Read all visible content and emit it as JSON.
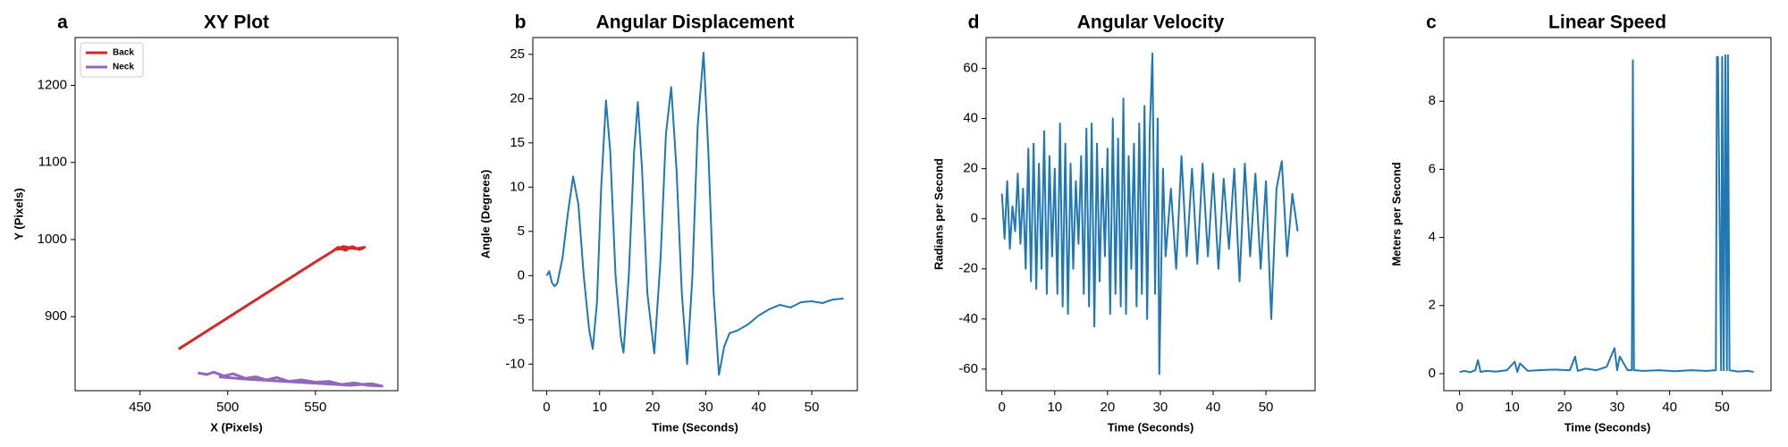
{
  "chart_data": [
    {
      "type": "line",
      "panel_label": "a",
      "title": "XY Plot",
      "xlabel": "X (Pixels)",
      "ylabel": "Y (Pixels)",
      "xlim": [
        413,
        597
      ],
      "ylim": [
        804,
        1262
      ],
      "xticks": [
        450,
        500,
        550
      ],
      "yticks": [
        900,
        1000,
        1100,
        1200
      ],
      "legend": "upper left",
      "series": [
        {
          "name": "Back",
          "color": "#d62728",
          "x": [
            472,
            490,
            510,
            530,
            550,
            560,
            563,
            567,
            571,
            575,
            578,
            573,
            566,
            561,
            570,
            577
          ],
          "values": [
            858,
            884,
            913,
            942,
            971,
            985,
            990,
            986,
            991,
            987,
            990,
            988,
            991,
            987,
            989,
            988
          ]
        },
        {
          "name": "Neck",
          "color": "#9467bd",
          "x": [
            483,
            488,
            492,
            498,
            503,
            510,
            516,
            522,
            528,
            535,
            542,
            550,
            558,
            565,
            572,
            580,
            588,
            582,
            570,
            555,
            540,
            525,
            510,
            495
          ],
          "values": [
            827,
            825,
            828,
            823,
            826,
            820,
            822,
            818,
            821,
            816,
            818,
            815,
            816,
            812,
            814,
            811,
            810,
            813,
            811,
            813,
            815,
            817,
            819,
            822
          ]
        }
      ]
    },
    {
      "type": "line",
      "panel_label": "b",
      "title": "Angular Displacement",
      "xlabel": "Time (Seconds)",
      "ylabel": "Angle (Degrees)",
      "xlim": [
        -2.6,
        58.6
      ],
      "ylim": [
        -13.0,
        26.9
      ],
      "xticks": [
        0,
        10,
        20,
        30,
        40,
        50
      ],
      "yticks": [
        -10,
        -5,
        0,
        5,
        10,
        15,
        20,
        25
      ],
      "color": "#1f77b4",
      "x": [
        0,
        0.5,
        1,
        1.5,
        2,
        3,
        4,
        5,
        6,
        7,
        8,
        8.7,
        9.5,
        10.3,
        11.2,
        12,
        13,
        14,
        14.5,
        15.5,
        16.5,
        17.2,
        18,
        19,
        20.3,
        21.5,
        22.5,
        23.5,
        24.5,
        25.5,
        26.5,
        27.5,
        28.5,
        29.6,
        30.5,
        31.5,
        32.5,
        33.5,
        34.5,
        36,
        38,
        40,
        42,
        44,
        46,
        48,
        50,
        52,
        54,
        56
      ],
      "values": [
        0,
        0.5,
        -0.8,
        -1.2,
        -0.9,
        2,
        7,
        11.2,
        8,
        0,
        -6,
        -8.3,
        -3,
        10,
        19.8,
        14,
        0,
        -7,
        -8.7,
        0,
        14,
        19.6,
        12,
        -2,
        -8.8,
        2,
        16,
        21.3,
        12,
        -2,
        -10,
        0,
        17,
        25.2,
        14,
        -2,
        -11.2,
        -8,
        -6.5,
        -6.2,
        -5.5,
        -4.5,
        -3.8,
        -3.3,
        -3.6,
        -3,
        -2.9,
        -3.1,
        -2.7,
        -2.6
      ]
    },
    {
      "type": "line",
      "panel_label": "d",
      "title": "Angular Velocity",
      "xlabel": "Time (Seconds)",
      "ylabel": "Radians per Second",
      "xlim": [
        -3.0,
        59.3
      ],
      "ylim": [
        -68.6,
        72.3
      ],
      "xticks": [
        0,
        10,
        20,
        30,
        40,
        50
      ],
      "yticks": [
        -60,
        -40,
        -20,
        0,
        20,
        40,
        60
      ],
      "color": "#1f77b4",
      "x": [
        0,
        0.5,
        1,
        1.5,
        2,
        2.5,
        3,
        3.5,
        4,
        4.5,
        5,
        5.5,
        6,
        6.5,
        7,
        7.5,
        8,
        8.5,
        9,
        9.5,
        10,
        10.5,
        11,
        11.5,
        12,
        12.5,
        13,
        13.5,
        14,
        14.5,
        15,
        15.5,
        16,
        16.5,
        17,
        17.5,
        18,
        18.5,
        19,
        19.5,
        20,
        20.5,
        21,
        21.5,
        22,
        22.5,
        23,
        23.5,
        24,
        24.5,
        25,
        25.5,
        26,
        26.5,
        27,
        27.5,
        28,
        28.5,
        29,
        29.5,
        29.8,
        30.5,
        31,
        32,
        33,
        34,
        35,
        36,
        37,
        38,
        39,
        40,
        41,
        42,
        43,
        44,
        45,
        46,
        47,
        48,
        49,
        50,
        51,
        52,
        53,
        54,
        55,
        56
      ],
      "values": [
        10,
        -8,
        15,
        -12,
        5,
        -5,
        18,
        -10,
        12,
        -20,
        28,
        -25,
        30,
        -28,
        22,
        -20,
        35,
        -30,
        25,
        -15,
        20,
        -30,
        38,
        -35,
        30,
        -38,
        22,
        -20,
        15,
        -10,
        25,
        -30,
        36,
        -35,
        38,
        -43,
        30,
        -25,
        20,
        -15,
        28,
        -38,
        40,
        -30,
        32,
        -35,
        48,
        -38,
        25,
        -20,
        30,
        -35,
        38,
        -30,
        45,
        -40,
        35,
        66,
        -30,
        40,
        -62,
        20,
        -15,
        12,
        -20,
        25,
        -15,
        20,
        -18,
        22,
        -15,
        18,
        -20,
        16,
        -12,
        20,
        -25,
        22,
        -15,
        18,
        -20,
        15,
        -40,
        12,
        23,
        -15,
        10,
        -5
      ]
    },
    {
      "type": "line",
      "panel_label": "c",
      "title": "Linear Speed",
      "xlabel": "Time (Seconds)",
      "ylabel": "Meters per Second",
      "xlim": [
        -3.0,
        59.3
      ],
      "ylim": [
        -0.5,
        9.87
      ],
      "xticks": [
        0,
        10,
        20,
        30,
        40,
        50
      ],
      "yticks": [
        0,
        2,
        4,
        6,
        8
      ],
      "color": "#1f77b4",
      "x": [
        0,
        1,
        2,
        3,
        3.5,
        4,
        5,
        7,
        9,
        10.5,
        11,
        11.5,
        13,
        15,
        18,
        21,
        22,
        22.5,
        24,
        26,
        28,
        29.5,
        30,
        30.5,
        32,
        32.8,
        33,
        33.2,
        35,
        38,
        41,
        44,
        47,
        48.8,
        49,
        49.2,
        49.8,
        50,
        50.3,
        50.6,
        50.9,
        51.1,
        51.4,
        53,
        55,
        56
      ],
      "values": [
        0.05,
        0.08,
        0.04,
        0.1,
        0.4,
        0.05,
        0.08,
        0.06,
        0.1,
        0.35,
        0.05,
        0.3,
        0.08,
        0.1,
        0.12,
        0.1,
        0.5,
        0.08,
        0.15,
        0.1,
        0.2,
        0.75,
        0.1,
        0.5,
        0.1,
        0.1,
        9.2,
        0.1,
        0.08,
        0.1,
        0.07,
        0.1,
        0.08,
        0.1,
        9.3,
        9.3,
        0.1,
        9.3,
        0.1,
        9.35,
        0.1,
        9.35,
        0.1,
        0.06,
        0.08,
        0.05
      ]
    }
  ]
}
